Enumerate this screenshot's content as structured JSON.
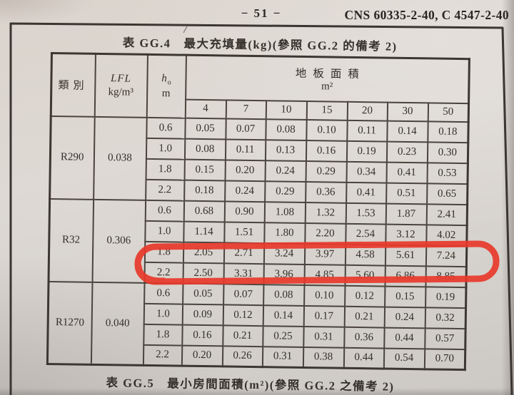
{
  "header": {
    "page_number": "− 51 −",
    "standard_code": "CNS 60335-2-40, C 4547-2-40"
  },
  "table_gg4": {
    "title": "表 GG.4　最大充填量(kg)(參照 GG.2 的備考 2)",
    "columns": {
      "category_label": "類別",
      "lfl_label": "LFL",
      "lfl_unit": "kg/m³",
      "h0_label": "h",
      "h0_sub": "o",
      "h0_unit": "m",
      "area_label": "地板面積",
      "area_unit": "m²",
      "area_values": [
        "4",
        "7",
        "10",
        "15",
        "20",
        "30",
        "50"
      ]
    },
    "groups": [
      {
        "category": "R290",
        "lfl": "0.038",
        "rows": [
          {
            "h": "0.6",
            "values": [
              "0.05",
              "0.07",
              "0.08",
              "0.10",
              "0.11",
              "0.14",
              "0.18"
            ]
          },
          {
            "h": "1.0",
            "values": [
              "0.08",
              "0.11",
              "0.13",
              "0.16",
              "0.19",
              "0.23",
              "0.30"
            ]
          },
          {
            "h": "1.8",
            "values": [
              "0.15",
              "0.20",
              "0.24",
              "0.29",
              "0.34",
              "0.41",
              "0.53"
            ]
          },
          {
            "h": "2.2",
            "values": [
              "0.18",
              "0.24",
              "0.29",
              "0.36",
              "0.41",
              "0.51",
              "0.65"
            ]
          }
        ]
      },
      {
        "category": "R32",
        "lfl": "0.306",
        "rows": [
          {
            "h": "0.6",
            "values": [
              "0.68",
              "0.90",
              "1.08",
              "1.32",
              "1.53",
              "1.87",
              "2.41"
            ]
          },
          {
            "h": "1.0",
            "values": [
              "1.14",
              "1.51",
              "1.80",
              "2.20",
              "2.54",
              "3.12",
              "4.02"
            ]
          },
          {
            "h": "1.8",
            "values": [
              "2.05",
              "2.71",
              "3.24",
              "3.97",
              "4.58",
              "5.61",
              "7.24"
            ]
          },
          {
            "h": "2.2",
            "values": [
              "2.50",
              "3.31",
              "3.96",
              "4.85",
              "5.60",
              "6.86",
              "8.85"
            ],
            "highlighted": true
          }
        ]
      },
      {
        "category": "R1270",
        "lfl": "0.040",
        "rows": [
          {
            "h": "0.6",
            "values": [
              "0.05",
              "0.07",
              "0.08",
              "0.10",
              "0.12",
              "0.15",
              "0.19"
            ]
          },
          {
            "h": "1.0",
            "values": [
              "0.09",
              "0.12",
              "0.14",
              "0.17",
              "0.21",
              "0.24",
              "0.32"
            ]
          },
          {
            "h": "1.8",
            "values": [
              "0.16",
              "0.21",
              "0.25",
              "0.31",
              "0.36",
              "0.44",
              "0.57"
            ]
          },
          {
            "h": "2.2",
            "values": [
              "0.20",
              "0.26",
              "0.31",
              "0.38",
              "0.44",
              "0.54",
              "0.70"
            ]
          }
        ]
      }
    ],
    "annotation": {
      "type": "hand-drawn-marker-oval",
      "color": "#e8382b",
      "circled_row": "R32 h₀ = 2.2"
    }
  },
  "table_gg5": {
    "caption": "表 GG.5　最小房間面積(m²)(參照 GG.2 之備考 2)"
  }
}
